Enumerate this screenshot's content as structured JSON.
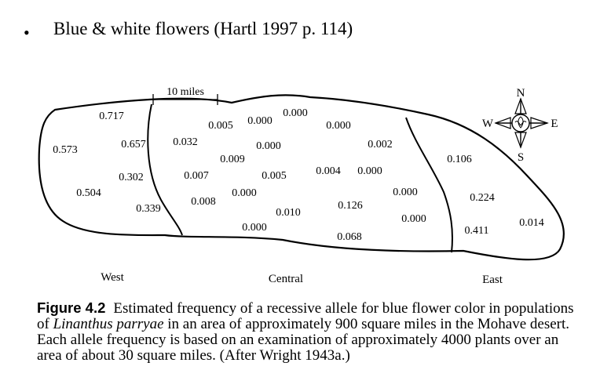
{
  "slide": {
    "bullet": "•",
    "heading": "Blue & white flowers (Hartl 1997 p. 114)"
  },
  "figure": {
    "scale_bar_label": "10 miles",
    "compass": {
      "north": "N",
      "south": "S",
      "east": "E",
      "west": "W"
    },
    "regions": {
      "west": "West",
      "central": "Central",
      "east": "East"
    },
    "frequencies": {
      "west": [
        "0.717",
        "0.573",
        "0.657",
        "0.302",
        "0.504",
        "0.339"
      ],
      "central": [
        "0.005",
        "0.000",
        "0.000",
        "0.000",
        "0.032",
        "0.000",
        "0.002",
        "0.009",
        "0.007",
        "0.005",
        "0.004",
        "0.000",
        "0.008",
        "0.000",
        "0.000",
        "0.010",
        "0.126",
        "0.000",
        "0.000",
        "0.068"
      ],
      "east": [
        "0.106",
        "0.224",
        "0.014",
        "0.411"
      ]
    },
    "caption": {
      "label": "Figure 4.2",
      "text_pre": "Estimated frequency of a recessive allele for blue flower color in populations of ",
      "species": "Linanthus parryae",
      "text_post": " in an area of approximately 900 square miles in the Mohave desert. Each allele frequency is based on an examination of approximately 4000 plants over an area of about 30 square miles. (After Wright 1943a.)"
    }
  }
}
